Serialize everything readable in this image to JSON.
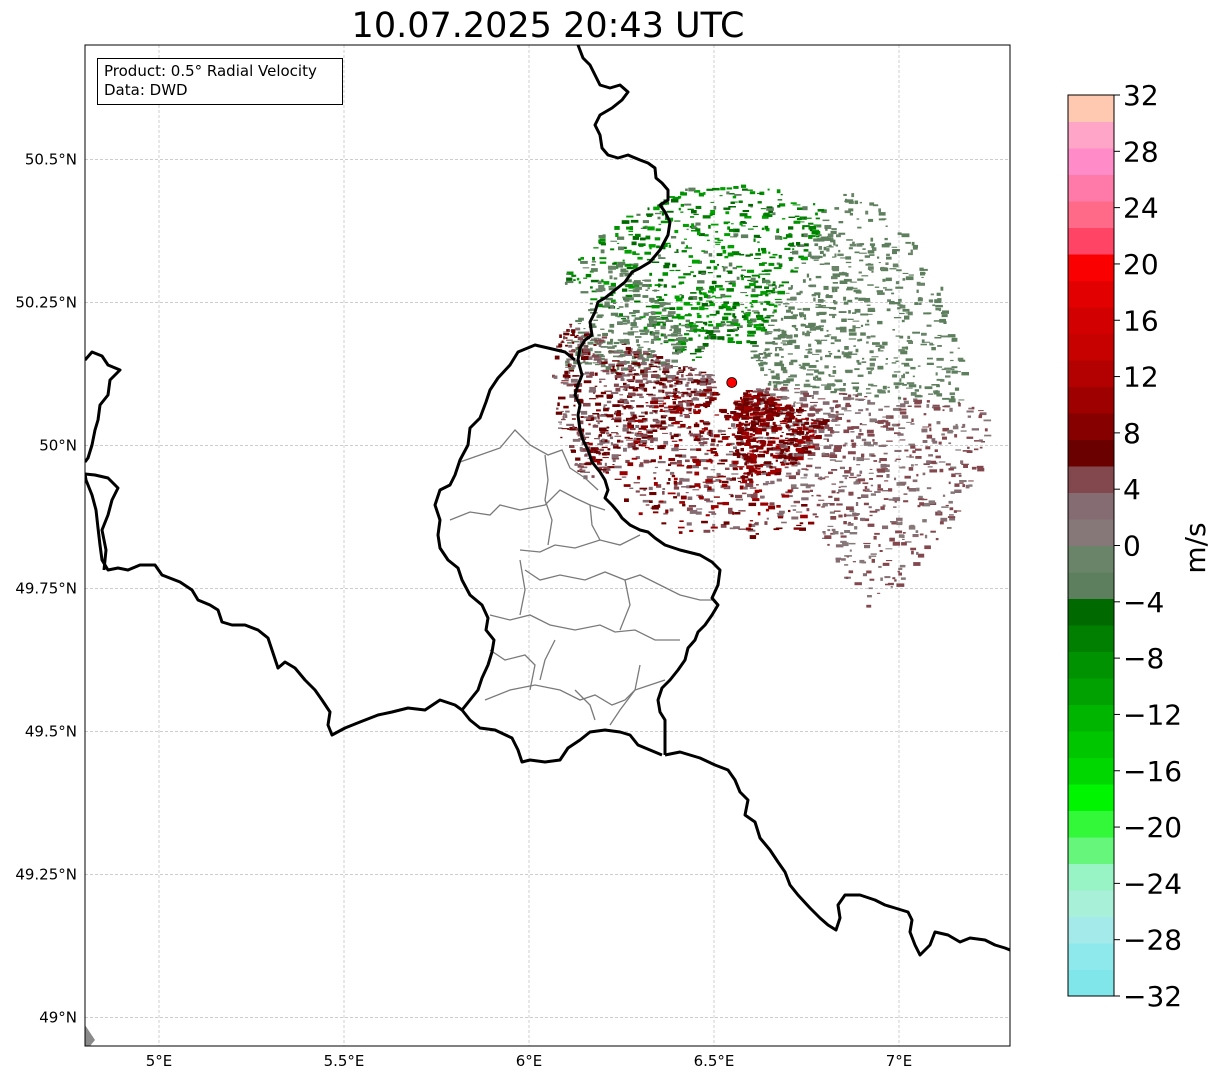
{
  "title": "10.07.2025 20:43 UTC",
  "info": {
    "product": "Product: 0.5° Radial Velocity",
    "data": "Data: DWD"
  },
  "map": {
    "lon_range": [
      4.8,
      7.3
    ],
    "lat_range": [
      48.95,
      50.7
    ],
    "x_ticks": [
      {
        "value": 5.0,
        "label": "5°E"
      },
      {
        "value": 5.5,
        "label": "5.5°E"
      },
      {
        "value": 6.0,
        "label": "6°E"
      },
      {
        "value": 6.5,
        "label": "6.5°E"
      },
      {
        "value": 7.0,
        "label": "7°E"
      }
    ],
    "y_ticks": [
      {
        "value": 50.5,
        "label": "50.5°N"
      },
      {
        "value": 50.25,
        "label": "50.25°N"
      },
      {
        "value": 50.0,
        "label": "50°N"
      },
      {
        "value": 49.75,
        "label": "49.75°N"
      },
      {
        "value": 49.5,
        "label": "49.5°N"
      },
      {
        "value": 49.25,
        "label": "49.25°N"
      },
      {
        "value": 49.0,
        "label": "49°N"
      }
    ],
    "gridlines": true,
    "radar_site": {
      "lon": 6.548,
      "lat": 50.11,
      "color": "#ff0000"
    }
  },
  "colorbar": {
    "label": "m/s",
    "range": [
      -32,
      32
    ],
    "step": 2,
    "ticks": [
      {
        "value": 32,
        "label": "32"
      },
      {
        "value": 28,
        "label": "28"
      },
      {
        "value": 24,
        "label": "24"
      },
      {
        "value": 20,
        "label": "20"
      },
      {
        "value": 16,
        "label": "16"
      },
      {
        "value": 12,
        "label": "12"
      },
      {
        "value": 8,
        "label": "8"
      },
      {
        "value": 4,
        "label": "4"
      },
      {
        "value": 0,
        "label": "0"
      },
      {
        "value": -4,
        "label": "−4"
      },
      {
        "value": -8,
        "label": "−8"
      },
      {
        "value": -12,
        "label": "−12"
      },
      {
        "value": -16,
        "label": "−16"
      },
      {
        "value": -20,
        "label": "−20"
      },
      {
        "value": -24,
        "label": "−24"
      },
      {
        "value": -28,
        "label": "−28"
      },
      {
        "value": -32,
        "label": "−32"
      }
    ],
    "colors": [
      "#80e6ea",
      "#8ee9ec",
      "#a5eaea",
      "#a9f0d8",
      "#98f4c4",
      "#66f67c",
      "#33f739",
      "#00f500",
      "#00d600",
      "#00c600",
      "#00b500",
      "#00a100",
      "#009200",
      "#007f00",
      "#006a00",
      "#5e7f5e",
      "#6a846a",
      "#867878",
      "#856b72",
      "#83484e",
      "#6a0000",
      "#870000",
      "#9e0000",
      "#b30000",
      "#c70000",
      "#d30000",
      "#e30000",
      "#fa0000",
      "#ff4466",
      "#ff6a88",
      "#ff7aa8",
      "#ff8bc8",
      "#ffa6c8",
      "#ffc9b1"
    ]
  }
}
